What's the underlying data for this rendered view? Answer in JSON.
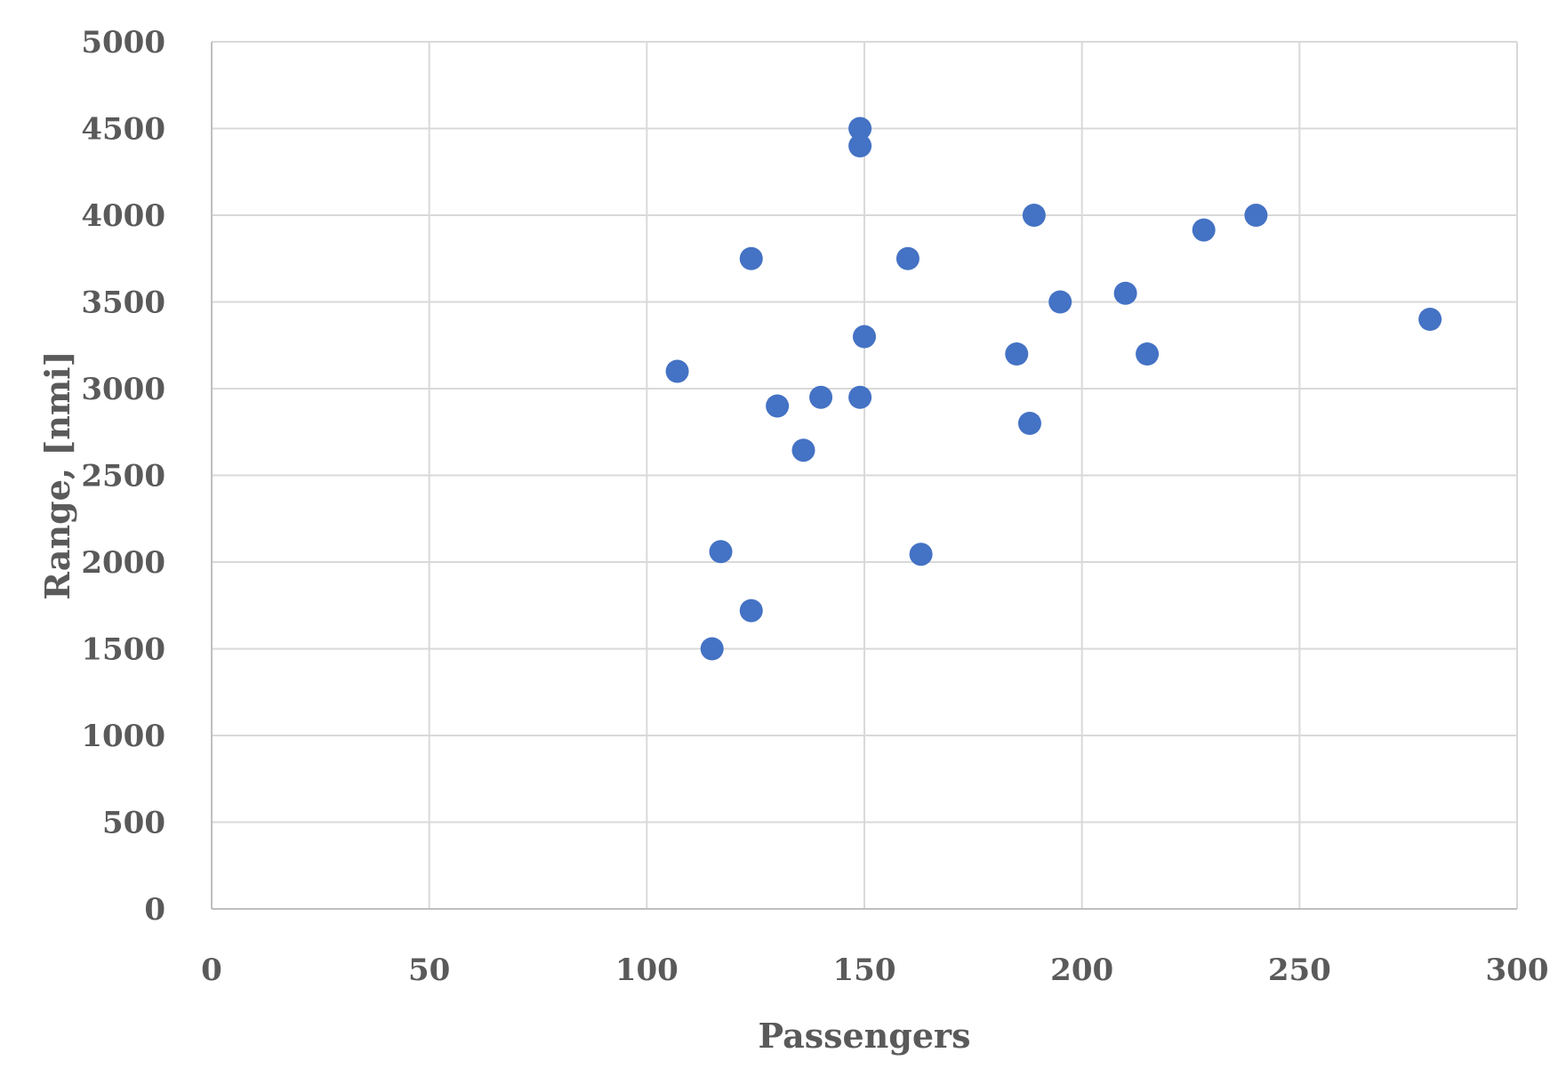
{
  "chart_data": {
    "type": "scatter",
    "title": "",
    "xlabel": "Passengers",
    "ylabel": "Range, [nmi]",
    "xlim": [
      0,
      300
    ],
    "ylim": [
      0,
      5000
    ],
    "x_ticks": [
      "0",
      "50",
      "100",
      "150",
      "200",
      "250",
      "300"
    ],
    "y_ticks": [
      "0",
      "500",
      "1000",
      "1500",
      "2000",
      "2500",
      "3000",
      "3500",
      "4000",
      "4500",
      "5000"
    ],
    "grid": true,
    "legend": "none",
    "marker_color": "#4472C4",
    "series": [
      {
        "points": [
          {
            "x": 107,
            "y": 3100
          },
          {
            "x": 115,
            "y": 1500
          },
          {
            "x": 117,
            "y": 2060
          },
          {
            "x": 124,
            "y": 3750
          },
          {
            "x": 124,
            "y": 1720
          },
          {
            "x": 130,
            "y": 2900
          },
          {
            "x": 136,
            "y": 2645
          },
          {
            "x": 140,
            "y": 2950
          },
          {
            "x": 149,
            "y": 4500
          },
          {
            "x": 149,
            "y": 4400
          },
          {
            "x": 149,
            "y": 2950
          },
          {
            "x": 150,
            "y": 3300
          },
          {
            "x": 160,
            "y": 3750
          },
          {
            "x": 163,
            "y": 2045
          },
          {
            "x": 185,
            "y": 3200
          },
          {
            "x": 188,
            "y": 2800
          },
          {
            "x": 189,
            "y": 4000
          },
          {
            "x": 195,
            "y": 3500
          },
          {
            "x": 210,
            "y": 3550
          },
          {
            "x": 215,
            "y": 3200
          },
          {
            "x": 228,
            "y": 3915
          },
          {
            "x": 240,
            "y": 4000
          },
          {
            "x": 280,
            "y": 3400
          }
        ]
      }
    ]
  }
}
